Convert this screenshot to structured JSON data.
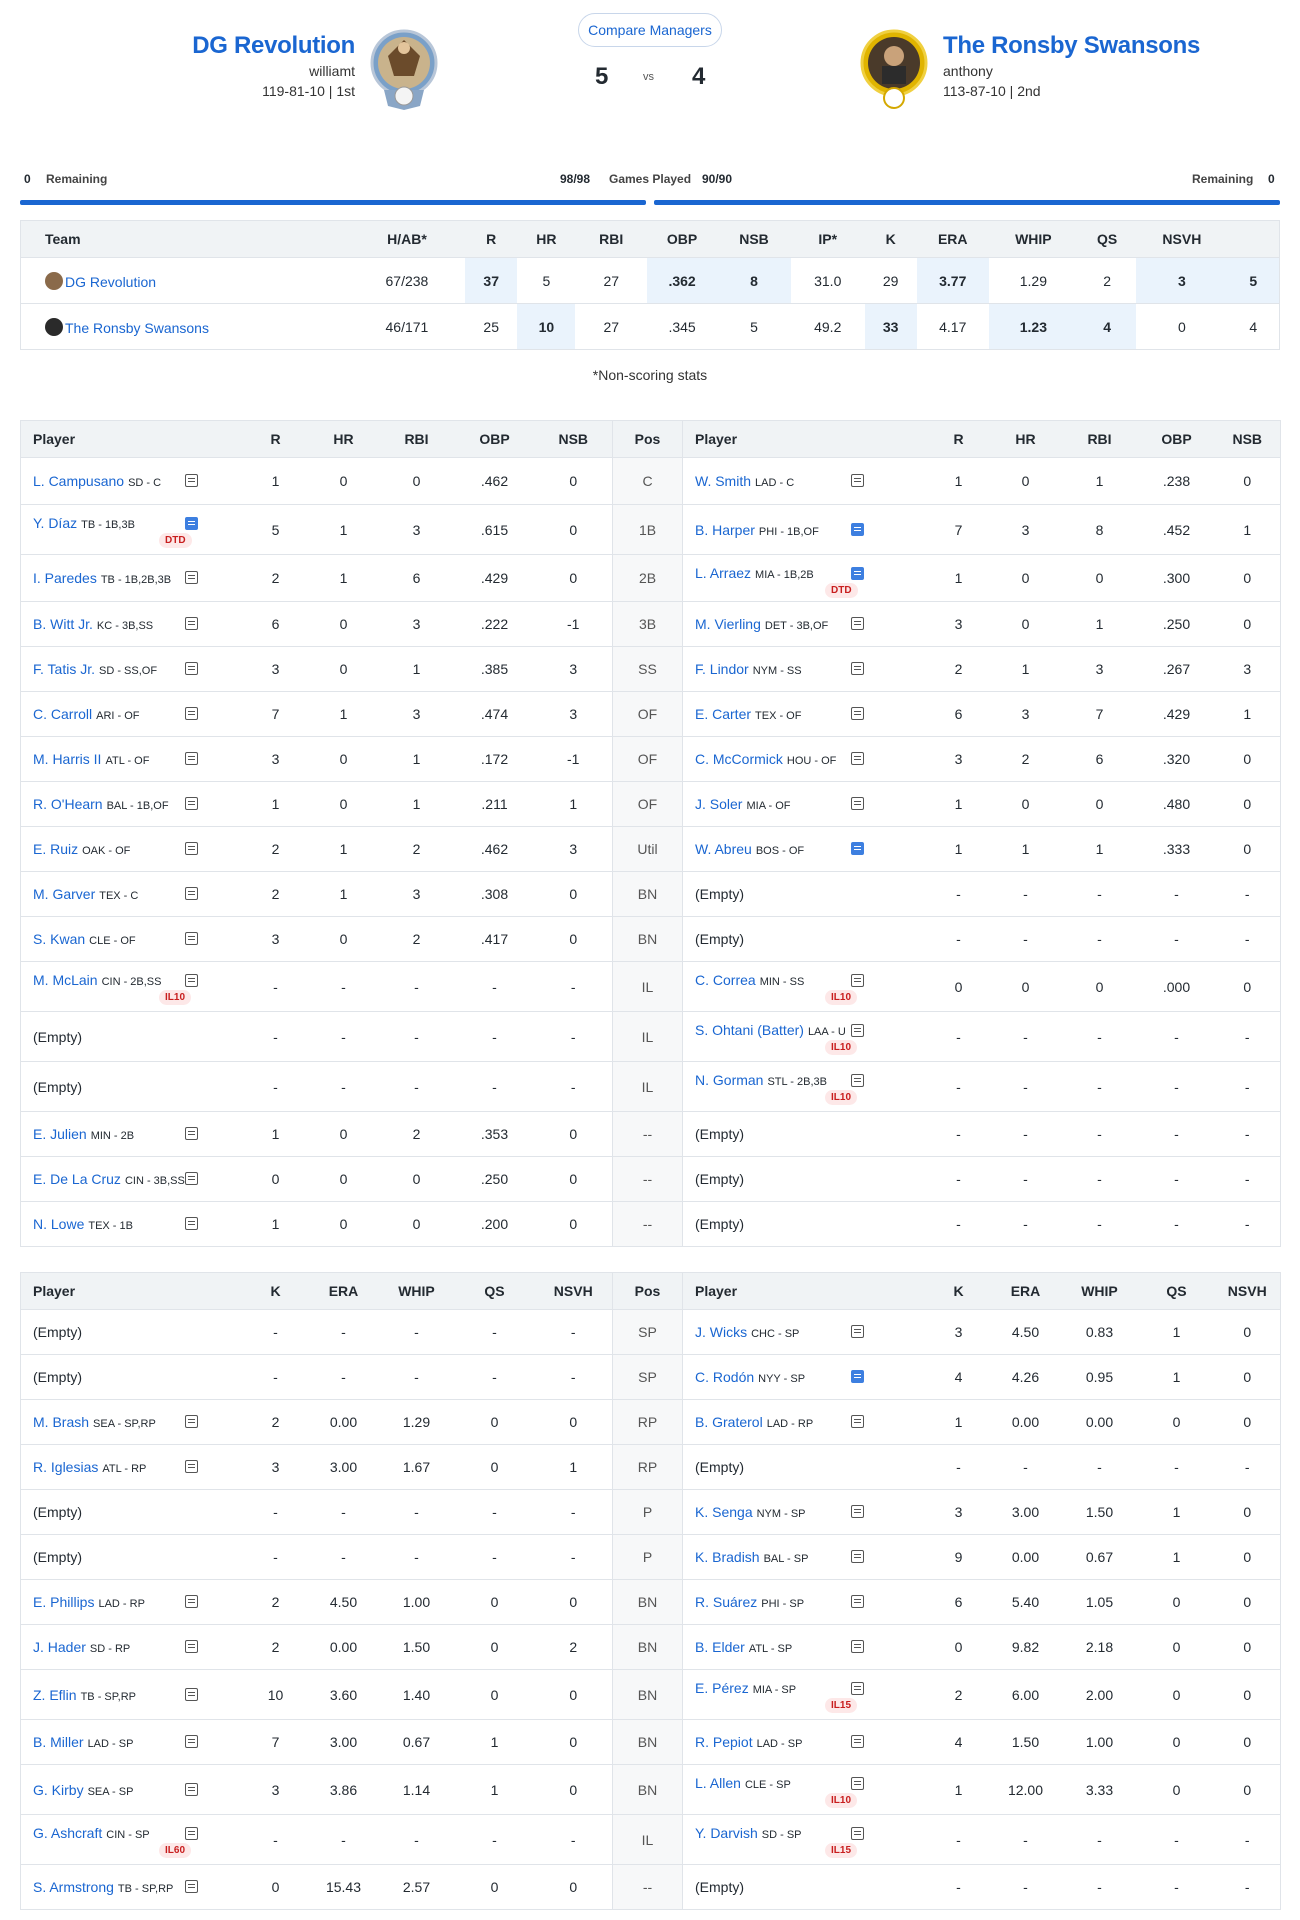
{
  "header": {
    "left_team": {
      "name": "DG Revolution",
      "manager": "williamt",
      "record": "119-81-10 | 1st",
      "score": "5"
    },
    "right_team": {
      "name": "The Ronsby Swansons",
      "manager": "anthony",
      "record": "113-87-10 | 2nd",
      "score": "4"
    },
    "vs": "vs",
    "compare_label": "Compare Managers"
  },
  "games": {
    "left_remaining_count": "0",
    "left_remaining_label": "Remaining",
    "left_played": "98/98",
    "played_label": "Games Played",
    "right_played": "90/90",
    "right_remaining_label": "Remaining",
    "right_remaining_count": "0"
  },
  "summary": {
    "headers": [
      "Team",
      "H/AB*",
      "R",
      "HR",
      "RBI",
      "OBP",
      "NSB",
      "IP*",
      "K",
      "ERA",
      "WHIP",
      "QS",
      "NSVH",
      ""
    ],
    "rows": [
      {
        "team": "DG Revolution",
        "cells": [
          "67/238",
          "37",
          "5",
          "27",
          ".362",
          "8",
          "31.0",
          "29",
          "3.77",
          "1.29",
          "2",
          "3",
          "5"
        ],
        "hl": [
          1,
          4,
          5,
          8,
          11,
          12
        ]
      },
      {
        "team": "The Ronsby Swansons",
        "cells": [
          "46/171",
          "25",
          "10",
          "27",
          ".345",
          "5",
          "49.2",
          "33",
          "4.17",
          "1.23",
          "4",
          "0",
          "4"
        ],
        "hl": [
          2,
          7,
          9,
          10
        ]
      }
    ]
  },
  "footnote": "*Non-scoring stats",
  "batting": {
    "headers_left": [
      "Player",
      "R",
      "HR",
      "RBI",
      "OBP",
      "NSB"
    ],
    "pos_header": "Pos",
    "headers_right": [
      "Player",
      "R",
      "HR",
      "RBI",
      "OBP",
      "NSB"
    ],
    "rows": [
      {
        "pos": "C",
        "l": {
          "name": "L. Campusano",
          "meta": "SD - C",
          "stats": [
            "1",
            "0",
            "0",
            ".462",
            "0"
          ]
        },
        "r": {
          "name": "W. Smith",
          "meta": "LAD - C",
          "stats": [
            "1",
            "0",
            "1",
            ".238",
            "0"
          ]
        }
      },
      {
        "pos": "1B",
        "l": {
          "name": "Y. Díaz",
          "meta": "TB - 1B,3B",
          "badge": "DTD",
          "blue": true,
          "stats": [
            "5",
            "1",
            "3",
            ".615",
            "0"
          ]
        },
        "r": {
          "name": "B. Harper",
          "meta": "PHI - 1B,OF",
          "blue": true,
          "stats": [
            "7",
            "3",
            "8",
            ".452",
            "1"
          ]
        }
      },
      {
        "pos": "2B",
        "l": {
          "name": "I. Paredes",
          "meta": "TB - 1B,2B,3B",
          "stats": [
            "2",
            "1",
            "6",
            ".429",
            "0"
          ]
        },
        "r": {
          "name": "L. Arraez",
          "meta": "MIA - 1B,2B",
          "badge": "DTD",
          "blue": true,
          "stats": [
            "1",
            "0",
            "0",
            ".300",
            "0"
          ]
        }
      },
      {
        "pos": "3B",
        "l": {
          "name": "B. Witt Jr.",
          "meta": "KC - 3B,SS",
          "stats": [
            "6",
            "0",
            "3",
            ".222",
            "-1"
          ]
        },
        "r": {
          "name": "M. Vierling",
          "meta": "DET - 3B,OF",
          "stats": [
            "3",
            "0",
            "1",
            ".250",
            "0"
          ]
        }
      },
      {
        "pos": "SS",
        "l": {
          "name": "F. Tatis Jr.",
          "meta": "SD - SS,OF",
          "stats": [
            "3",
            "0",
            "1",
            ".385",
            "3"
          ]
        },
        "r": {
          "name": "F. Lindor",
          "meta": "NYM - SS",
          "stats": [
            "2",
            "1",
            "3",
            ".267",
            "3"
          ]
        }
      },
      {
        "pos": "OF",
        "l": {
          "name": "C. Carroll",
          "meta": "ARI - OF",
          "stats": [
            "7",
            "1",
            "3",
            ".474",
            "3"
          ]
        },
        "r": {
          "name": "E. Carter",
          "meta": "TEX - OF",
          "stats": [
            "6",
            "3",
            "7",
            ".429",
            "1"
          ]
        }
      },
      {
        "pos": "OF",
        "l": {
          "name": "M. Harris II",
          "meta": "ATL - OF",
          "stats": [
            "3",
            "0",
            "1",
            ".172",
            "-1"
          ]
        },
        "r": {
          "name": "C. McCormick",
          "meta": "HOU - OF",
          "stats": [
            "3",
            "2",
            "6",
            ".320",
            "0"
          ]
        }
      },
      {
        "pos": "OF",
        "l": {
          "name": "R. O'Hearn",
          "meta": "BAL - 1B,OF",
          "stats": [
            "1",
            "0",
            "1",
            ".211",
            "1"
          ]
        },
        "r": {
          "name": "J. Soler",
          "meta": "MIA - OF",
          "stats": [
            "1",
            "0",
            "0",
            ".480",
            "0"
          ]
        }
      },
      {
        "pos": "Util",
        "l": {
          "name": "E. Ruiz",
          "meta": "OAK - OF",
          "stats": [
            "2",
            "1",
            "2",
            ".462",
            "3"
          ]
        },
        "r": {
          "name": "W. Abreu",
          "meta": "BOS - OF",
          "blue": true,
          "stats": [
            "1",
            "1",
            "1",
            ".333",
            "0"
          ]
        }
      },
      {
        "pos": "BN",
        "l": {
          "name": "M. Garver",
          "meta": "TEX - C",
          "stats": [
            "2",
            "1",
            "3",
            ".308",
            "0"
          ]
        },
        "r": {
          "empty": "(Empty)",
          "stats": [
            "-",
            "-",
            "-",
            "-",
            "-"
          ]
        }
      },
      {
        "pos": "BN",
        "l": {
          "name": "S. Kwan",
          "meta": "CLE - OF",
          "stats": [
            "3",
            "0",
            "2",
            ".417",
            "0"
          ]
        },
        "r": {
          "empty": "(Empty)",
          "stats": [
            "-",
            "-",
            "-",
            "-",
            "-"
          ]
        }
      },
      {
        "pos": "IL",
        "l": {
          "name": "M. McLain",
          "meta": "CIN - 2B,SS",
          "badge": "IL10",
          "stats": [
            "-",
            "-",
            "-",
            "-",
            "-"
          ]
        },
        "r": {
          "name": "C. Correa",
          "meta": "MIN - SS",
          "badge": "IL10",
          "stats": [
            "0",
            "0",
            "0",
            ".000",
            "0"
          ]
        }
      },
      {
        "pos": "IL",
        "l": {
          "empty": "(Empty)",
          "stats": [
            "-",
            "-",
            "-",
            "-",
            "-"
          ]
        },
        "r": {
          "name": "S. Ohtani (Batter)",
          "meta": "LAA - U",
          "badge": "IL10",
          "stats": [
            "-",
            "-",
            "-",
            "-",
            "-"
          ]
        }
      },
      {
        "pos": "IL",
        "l": {
          "empty": "(Empty)",
          "stats": [
            "-",
            "-",
            "-",
            "-",
            "-"
          ]
        },
        "r": {
          "name": "N. Gorman",
          "meta": "STL - 2B,3B",
          "badge": "IL10",
          "stats": [
            "-",
            "-",
            "-",
            "-",
            "-"
          ]
        }
      },
      {
        "pos": "--",
        "l": {
          "name": "E. Julien",
          "meta": "MIN - 2B",
          "stats": [
            "1",
            "0",
            "2",
            ".353",
            "0"
          ]
        },
        "r": {
          "empty": "(Empty)",
          "stats": [
            "-",
            "-",
            "-",
            "-",
            "-"
          ]
        }
      },
      {
        "pos": "--",
        "l": {
          "name": "E. De La Cruz",
          "meta": "CIN - 3B,SS",
          "stats": [
            "0",
            "0",
            "0",
            ".250",
            "0"
          ]
        },
        "r": {
          "empty": "(Empty)",
          "stats": [
            "-",
            "-",
            "-",
            "-",
            "-"
          ]
        }
      },
      {
        "pos": "--",
        "l": {
          "name": "N. Lowe",
          "meta": "TEX - 1B",
          "stats": [
            "1",
            "0",
            "0",
            ".200",
            "0"
          ]
        },
        "r": {
          "empty": "(Empty)",
          "stats": [
            "-",
            "-",
            "-",
            "-",
            "-"
          ]
        }
      }
    ]
  },
  "pitching": {
    "headers_left": [
      "Player",
      "K",
      "ERA",
      "WHIP",
      "QS",
      "NSVH"
    ],
    "pos_header": "Pos",
    "headers_right": [
      "Player",
      "K",
      "ERA",
      "WHIP",
      "QS",
      "NSVH"
    ],
    "rows": [
      {
        "pos": "SP",
        "l": {
          "empty": "(Empty)",
          "stats": [
            "-",
            "-",
            "-",
            "-",
            "-"
          ]
        },
        "r": {
          "name": "J. Wicks",
          "meta": "CHC - SP",
          "stats": [
            "3",
            "4.50",
            "0.83",
            "1",
            "0"
          ]
        }
      },
      {
        "pos": "SP",
        "l": {
          "empty": "(Empty)",
          "stats": [
            "-",
            "-",
            "-",
            "-",
            "-"
          ]
        },
        "r": {
          "name": "C. Rodón",
          "meta": "NYY - SP",
          "blue": true,
          "stats": [
            "4",
            "4.26",
            "0.95",
            "1",
            "0"
          ]
        }
      },
      {
        "pos": "RP",
        "l": {
          "name": "M. Brash",
          "meta": "SEA - SP,RP",
          "stats": [
            "2",
            "0.00",
            "1.29",
            "0",
            "0"
          ]
        },
        "r": {
          "name": "B. Graterol",
          "meta": "LAD - RP",
          "stats": [
            "1",
            "0.00",
            "0.00",
            "0",
            "0"
          ]
        }
      },
      {
        "pos": "RP",
        "l": {
          "name": "R. Iglesias",
          "meta": "ATL - RP",
          "stats": [
            "3",
            "3.00",
            "1.67",
            "0",
            "1"
          ]
        },
        "r": {
          "empty": "(Empty)",
          "stats": [
            "-",
            "-",
            "-",
            "-",
            "-"
          ]
        }
      },
      {
        "pos": "P",
        "l": {
          "empty": "(Empty)",
          "stats": [
            "-",
            "-",
            "-",
            "-",
            "-"
          ]
        },
        "r": {
          "name": "K. Senga",
          "meta": "NYM - SP",
          "stats": [
            "3",
            "3.00",
            "1.50",
            "1",
            "0"
          ]
        }
      },
      {
        "pos": "P",
        "l": {
          "empty": "(Empty)",
          "stats": [
            "-",
            "-",
            "-",
            "-",
            "-"
          ]
        },
        "r": {
          "name": "K. Bradish",
          "meta": "BAL - SP",
          "stats": [
            "9",
            "0.00",
            "0.67",
            "1",
            "0"
          ]
        }
      },
      {
        "pos": "BN",
        "l": {
          "name": "E. Phillips",
          "meta": "LAD - RP",
          "stats": [
            "2",
            "4.50",
            "1.00",
            "0",
            "0"
          ]
        },
        "r": {
          "name": "R. Suárez",
          "meta": "PHI - SP",
          "stats": [
            "6",
            "5.40",
            "1.05",
            "0",
            "0"
          ]
        }
      },
      {
        "pos": "BN",
        "l": {
          "name": "J. Hader",
          "meta": "SD - RP",
          "stats": [
            "2",
            "0.00",
            "1.50",
            "0",
            "2"
          ]
        },
        "r": {
          "name": "B. Elder",
          "meta": "ATL - SP",
          "stats": [
            "0",
            "9.82",
            "2.18",
            "0",
            "0"
          ]
        }
      },
      {
        "pos": "BN",
        "l": {
          "name": "Z. Eflin",
          "meta": "TB - SP,RP",
          "stats": [
            "10",
            "3.60",
            "1.40",
            "0",
            "0"
          ]
        },
        "r": {
          "name": "E. Pérez",
          "meta": "MIA - SP",
          "badge": "IL15",
          "stats": [
            "2",
            "6.00",
            "2.00",
            "0",
            "0"
          ]
        }
      },
      {
        "pos": "BN",
        "l": {
          "name": "B. Miller",
          "meta": "LAD - SP",
          "stats": [
            "7",
            "3.00",
            "0.67",
            "1",
            "0"
          ]
        },
        "r": {
          "name": "R. Pepiot",
          "meta": "LAD - SP",
          "stats": [
            "4",
            "1.50",
            "1.00",
            "0",
            "0"
          ]
        }
      },
      {
        "pos": "BN",
        "l": {
          "name": "G. Kirby",
          "meta": "SEA - SP",
          "stats": [
            "3",
            "3.86",
            "1.14",
            "1",
            "0"
          ]
        },
        "r": {
          "name": "L. Allen",
          "meta": "CLE - SP",
          "badge": "IL10",
          "stats": [
            "1",
            "12.00",
            "3.33",
            "0",
            "0"
          ]
        }
      },
      {
        "pos": "IL",
        "l": {
          "name": "G. Ashcraft",
          "meta": "CIN - SP",
          "badge": "IL60",
          "stats": [
            "-",
            "-",
            "-",
            "-",
            "-"
          ]
        },
        "r": {
          "name": "Y. Darvish",
          "meta": "SD - SP",
          "badge": "IL15",
          "stats": [
            "-",
            "-",
            "-",
            "-",
            "-"
          ]
        }
      },
      {
        "pos": "--",
        "l": {
          "name": "S. Armstrong",
          "meta": "TB - SP,RP",
          "stats": [
            "0",
            "15.43",
            "2.57",
            "0",
            "0"
          ]
        },
        "r": {
          "empty": "(Empty)",
          "stats": [
            "-",
            "-",
            "-",
            "-",
            "-"
          ]
        }
      }
    ]
  }
}
